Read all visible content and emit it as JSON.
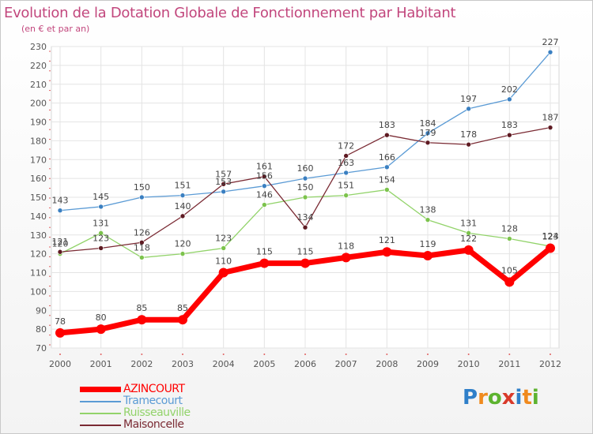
{
  "title": "Evolution de la Dotation Globale de Fonctionnement par Habitant",
  "subtitle": "(en € et par an)",
  "logo": {
    "text": "Proxiti",
    "letters": [
      "P",
      "r",
      "o",
      "x",
      "i",
      "t",
      "i"
    ],
    "colors": [
      "#2f7fc9",
      "#f08a1e",
      "#5db32f",
      "#d93a2a",
      "#2f7fc9",
      "#f08a1e",
      "#5db32f"
    ]
  },
  "chart_data": {
    "type": "line",
    "title": "Evolution de la Dotation Globale de Fonctionnement par Habitant",
    "subtitle": "(en € et par an)",
    "xlabel": "",
    "ylabel": "",
    "x": [
      "2000",
      "2001",
      "2002",
      "2003",
      "2004",
      "2005",
      "2006",
      "2007",
      "2008",
      "2009",
      "2010",
      "2011",
      "2012"
    ],
    "ylim": [
      70,
      230
    ],
    "yticks": [
      70,
      80,
      90,
      100,
      110,
      120,
      130,
      140,
      150,
      160,
      170,
      180,
      190,
      200,
      210,
      220,
      230
    ],
    "grid": true,
    "legend_position": "bottom-left",
    "series": [
      {
        "name": "Tramecourt",
        "color": "#5b9bd5",
        "dot": "#3a7fc1",
        "values": [
          143,
          145,
          150,
          151,
          153,
          156,
          160,
          163,
          166,
          184,
          197,
          202,
          227
        ]
      },
      {
        "name": "Ruisseauville",
        "color": "#92d36a",
        "dot": "#7cc34c",
        "values": [
          120,
          131,
          118,
          120,
          123,
          146,
          150,
          151,
          154,
          138,
          131,
          128,
          124
        ]
      },
      {
        "name": "Maisoncelle",
        "color": "#7a2a33",
        "dot": "#5e1a22",
        "values": [
          121,
          123,
          126,
          140,
          157,
          161,
          134,
          172,
          183,
          179,
          178,
          183,
          187
        ]
      },
      {
        "name": "AZINCOURT",
        "color": "#ff0000",
        "dot": "#ff0000",
        "bold": true,
        "values": [
          78,
          80,
          85,
          85,
          110,
          115,
          115,
          118,
          121,
          119,
          122,
          105,
          123
        ]
      }
    ]
  }
}
